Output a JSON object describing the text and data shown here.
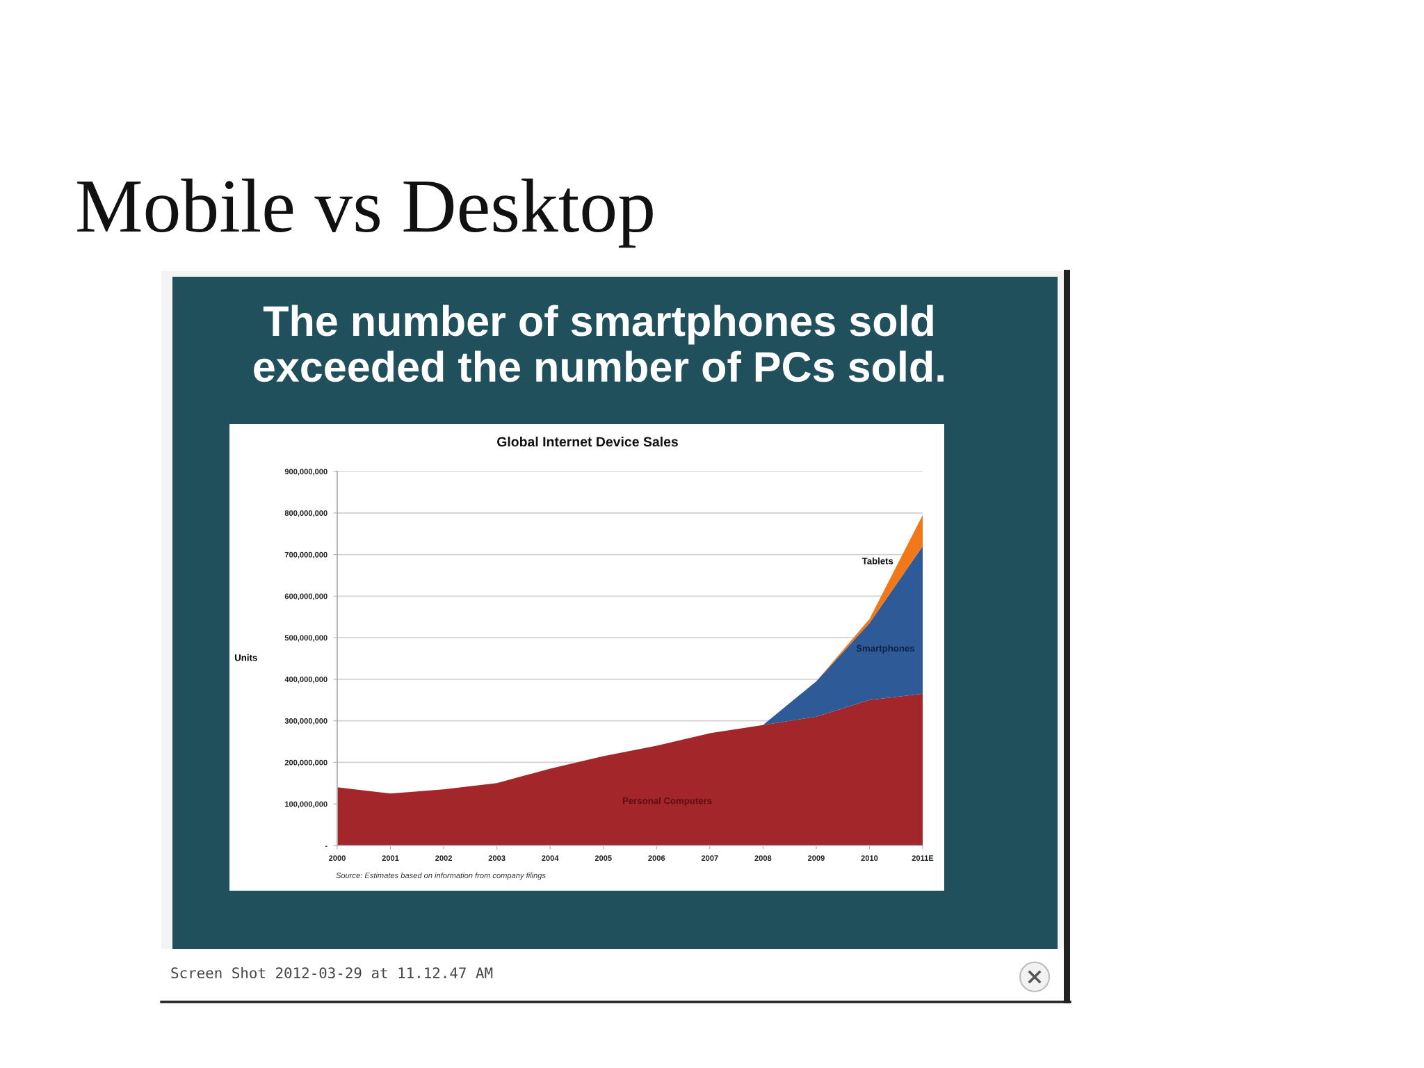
{
  "chart_data": {
    "type": "area",
    "title": "Mobile vs Desktop",
    "subtitle": "The number of smartphones sold exceeded the number of PCs sold.",
    "ylabel": "Units",
    "annotations": [
      "Global Internet Device Sales",
      "Source: Estimates based on information from company filings",
      "Screen Shot 2012-03-29 at 11.12.47 AM"
    ],
    "categories": [
      "2000",
      "2001",
      "2002",
      "2003",
      "2004",
      "2005",
      "2006",
      "2007",
      "2008",
      "2009",
      "2010",
      "2011E"
    ],
    "stacked": true,
    "series": [
      {
        "name": "Personal Computers",
        "color": "#a3262a",
        "values": [
          140000000,
          125000000,
          135000000,
          150000000,
          185000000,
          215000000,
          240000000,
          270000000,
          290000000,
          310000000,
          350000000,
          365000000
        ]
      },
      {
        "name": "Smartphones",
        "color": "#2e5b98",
        "values": [
          0,
          0,
          0,
          0,
          0,
          0,
          0,
          0,
          0,
          85000000,
          185000000,
          355000000
        ]
      },
      {
        "name": "Tablets",
        "color": "#f07818",
        "values": [
          0,
          0,
          0,
          0,
          0,
          0,
          0,
          0,
          0,
          0,
          10000000,
          75000000
        ]
      }
    ],
    "ylim": [
      0,
      900000000
    ],
    "yticks": [
      {
        "value": 0,
        "label": "-"
      },
      {
        "value": 100000000,
        "label": "100,000,000"
      },
      {
        "value": 200000000,
        "label": "200,000,000"
      },
      {
        "value": 300000000,
        "label": "300,000,000"
      },
      {
        "value": 400000000,
        "label": "400,000,000"
      },
      {
        "value": 500000000,
        "label": "500,000,000"
      },
      {
        "value": 600000000,
        "label": "600,000,000"
      },
      {
        "value": 700000000,
        "label": "700,000,000"
      },
      {
        "value": 800000000,
        "label": "800,000,000"
      },
      {
        "value": 900000000,
        "label": "900,000,000"
      }
    ],
    "grid": "y"
  }
}
